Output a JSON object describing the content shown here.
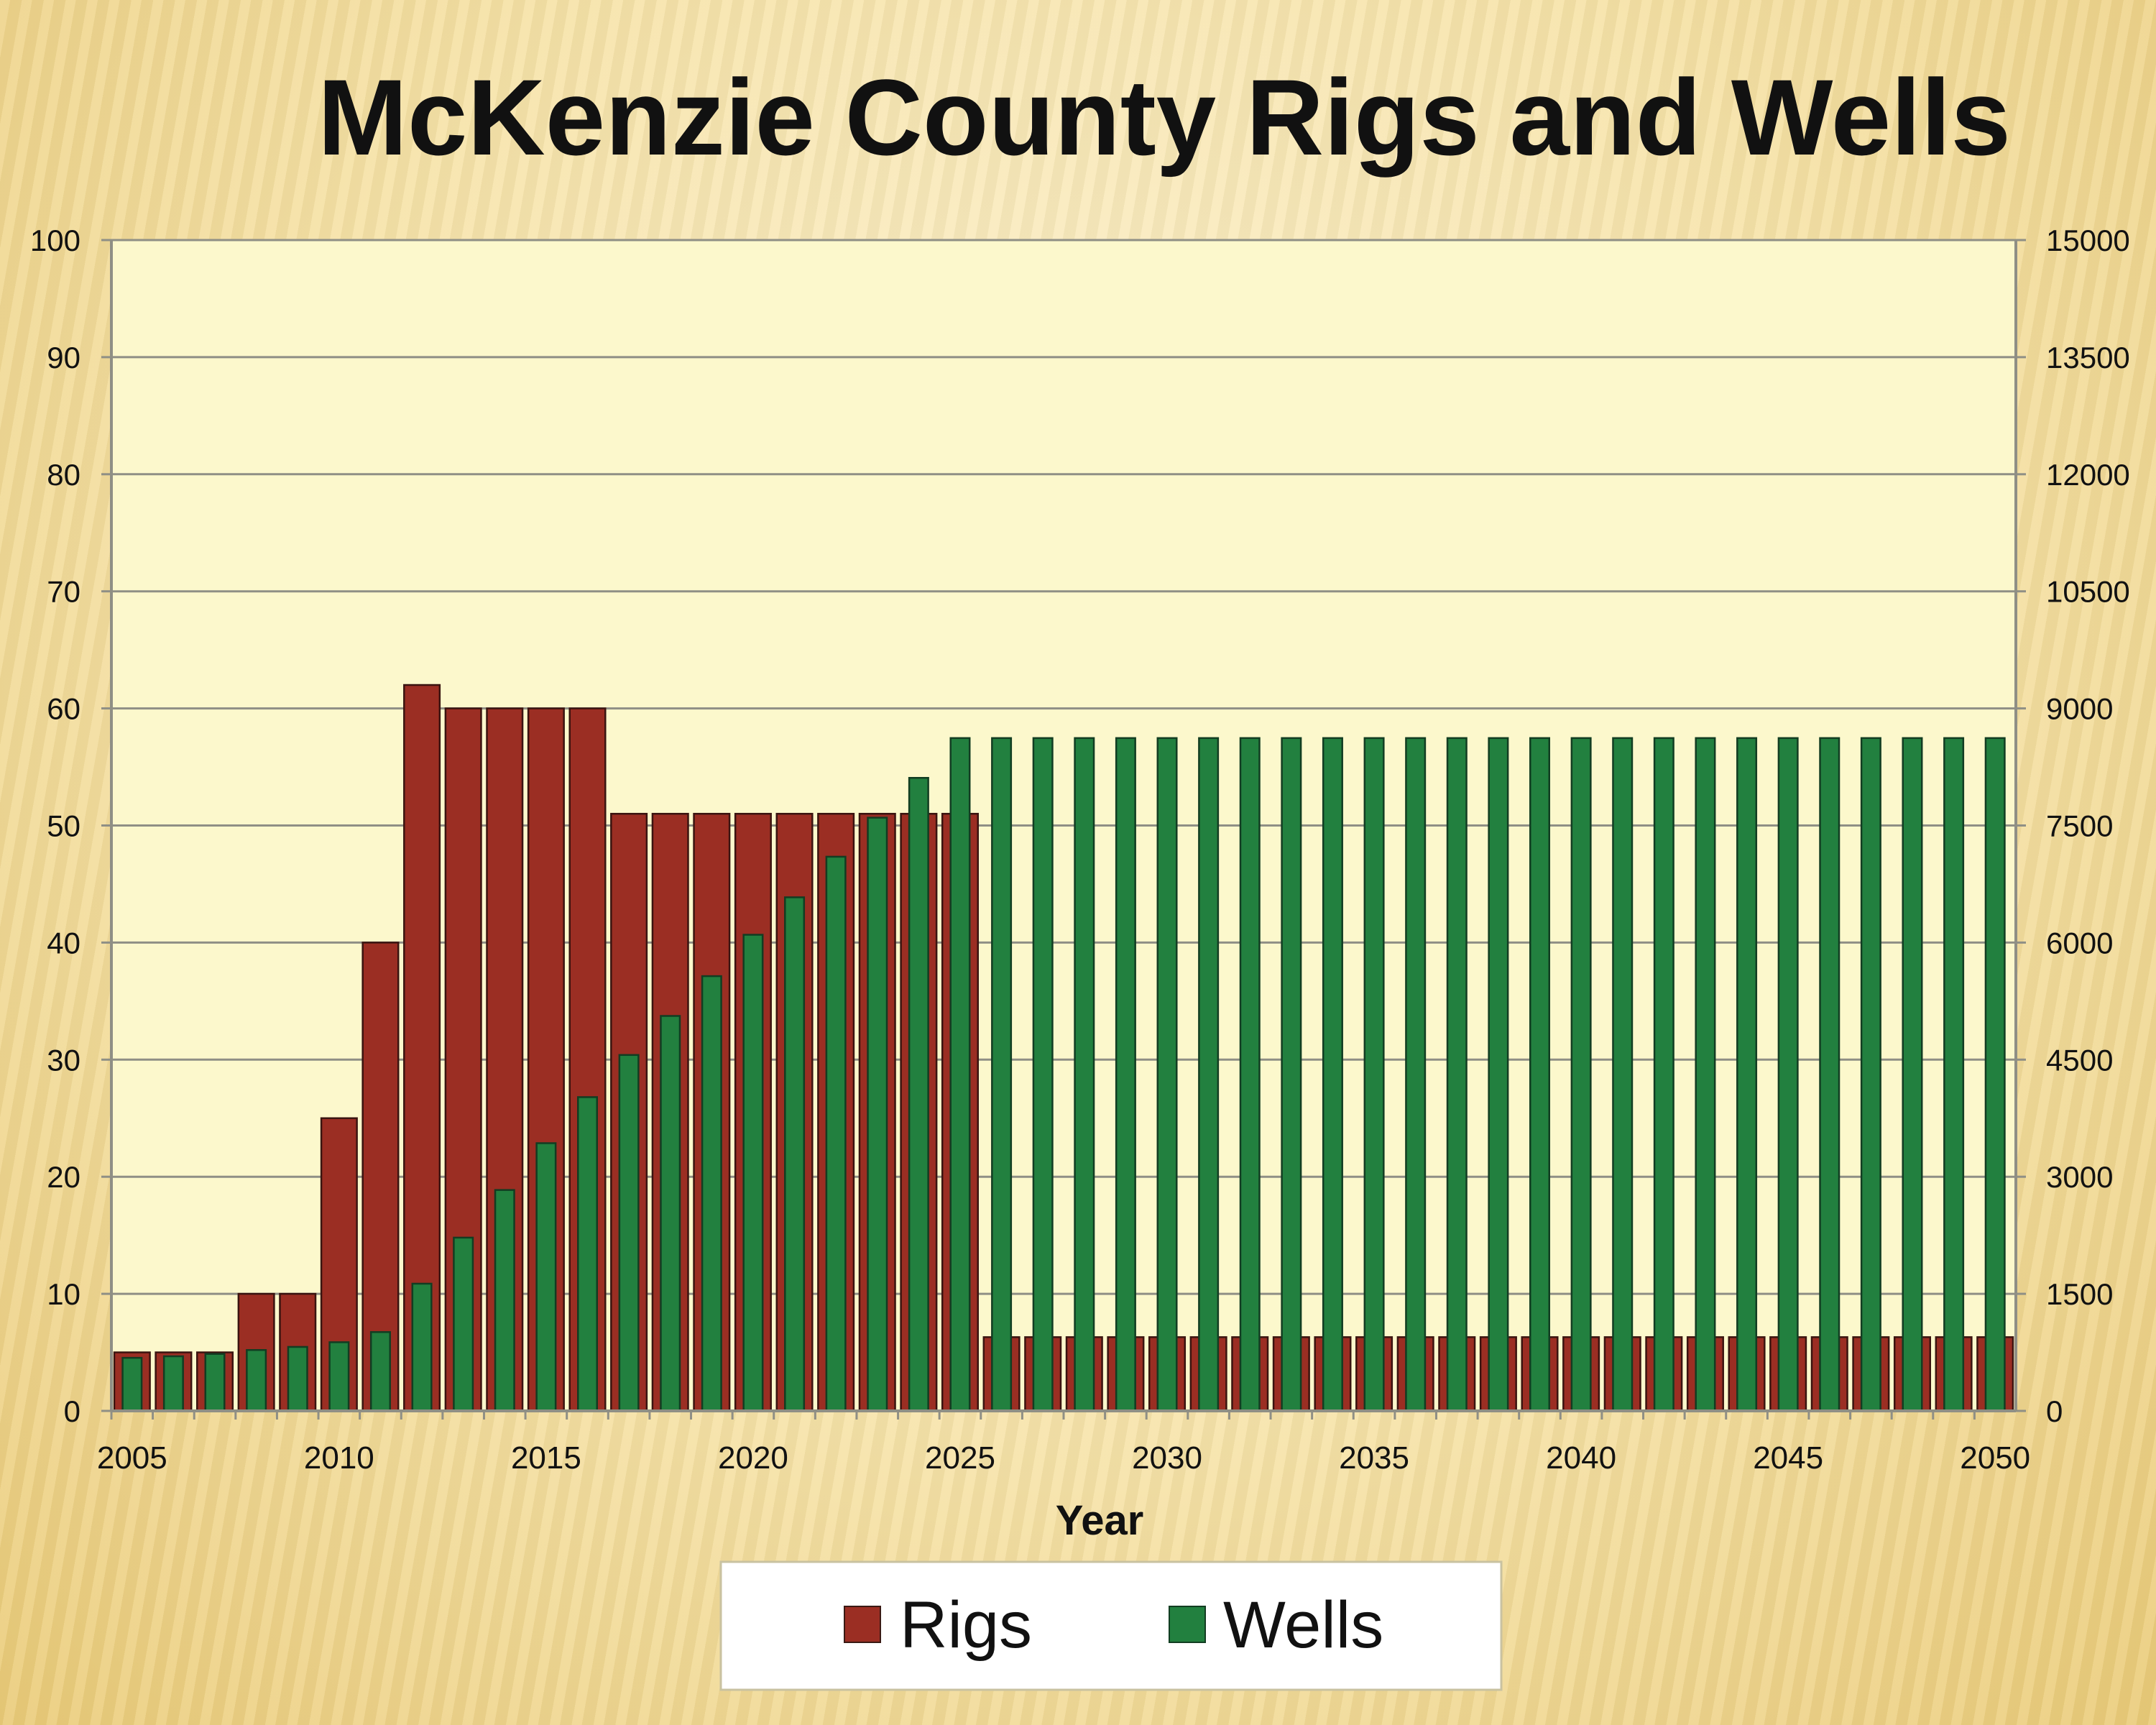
{
  "chart_data": {
    "type": "bar",
    "title": "McKenzie County Rigs and Wells",
    "xlabel": "Year",
    "ylabel_left": "",
    "ylabel_right": "",
    "x": [
      2005,
      2006,
      2007,
      2008,
      2009,
      2010,
      2011,
      2012,
      2013,
      2014,
      2015,
      2016,
      2017,
      2018,
      2019,
      2020,
      2021,
      2022,
      2023,
      2024,
      2025,
      2026,
      2027,
      2028,
      2029,
      2030,
      2031,
      2032,
      2033,
      2034,
      2035,
      2036,
      2037,
      2038,
      2039,
      2040,
      2041,
      2042,
      2043,
      2044,
      2045,
      2046,
      2047,
      2048,
      2049,
      2050
    ],
    "x_tick_labels": [
      "2005",
      "2010",
      "2015",
      "2020",
      "2025",
      "2030",
      "2035",
      "2040",
      "2045",
      "2050"
    ],
    "ylim_left": [
      0,
      100
    ],
    "yticks_left": [
      "0",
      "10",
      "20",
      "30",
      "40",
      "50",
      "60",
      "70",
      "80",
      "90",
      "100"
    ],
    "ylim_right": [
      0,
      15000
    ],
    "yticks_right": [
      "0",
      "1500",
      "3000",
      "4500",
      "6000",
      "7500",
      "9000",
      "10500",
      "12000",
      "13500",
      "15000"
    ],
    "grid": true,
    "legend_position": "bottom",
    "series": [
      {
        "name": "Rigs",
        "axis": "left",
        "color": "#9b2e23",
        "values": [
          5,
          5,
          5,
          10,
          10,
          25,
          40,
          62,
          60,
          60,
          60,
          60,
          51,
          51,
          51,
          51,
          51,
          51,
          51,
          51,
          51,
          6.3,
          6.3,
          6.3,
          6.3,
          6.3,
          6.3,
          6.3,
          6.3,
          6.3,
          6.3,
          6.3,
          6.3,
          6.3,
          6.3,
          6.3,
          6.3,
          6.3,
          6.3,
          6.3,
          6.3,
          6.3,
          6.3,
          6.3,
          6.3,
          6.3
        ]
      },
      {
        "name": "Wells",
        "axis": "right",
        "color": "#22803f",
        "values": [
          680,
          700,
          730,
          780,
          820,
          880,
          1010,
          1630,
          2220,
          2830,
          3430,
          4020,
          4560,
          5060,
          5570,
          6100,
          6580,
          7100,
          7600,
          8110,
          8620,
          8620,
          8620,
          8620,
          8620,
          8620,
          8620,
          8620,
          8620,
          8620,
          8620,
          8620,
          8620,
          8620,
          8620,
          8620,
          8620,
          8620,
          8620,
          8620,
          8620,
          8620,
          8620,
          8620,
          8620,
          8620
        ]
      }
    ],
    "colors": {
      "plot_bg": "#fcf8cc",
      "grid": "#8f8f85",
      "axis": "#8f8f85",
      "text": "#111111"
    }
  }
}
